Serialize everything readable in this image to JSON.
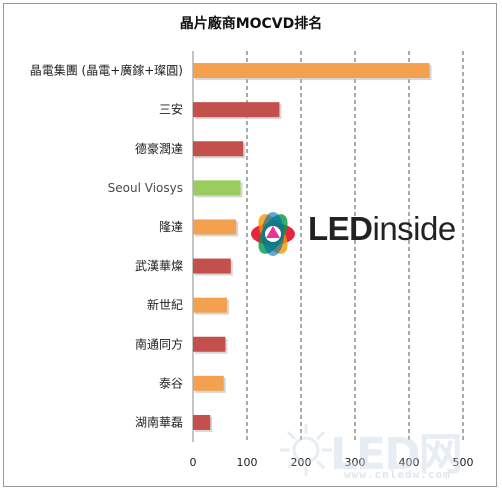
{
  "chart_data": {
    "type": "bar",
    "orientation": "horizontal",
    "title": "晶片廠商MOCVD排名",
    "xlabel": "",
    "ylabel": "",
    "xlim": [
      0,
      500
    ],
    "x_ticks": [
      0,
      100,
      200,
      300,
      400,
      500
    ],
    "grid": "vertical dashed",
    "legend": "none",
    "categories": [
      "晶電集團 (晶電+廣鎵+璨圓)",
      "三安",
      "德豪潤達",
      "Seoul Viosys",
      "隆達",
      "武漢華燦",
      "新世紀",
      "南通同方",
      "泰谷",
      "湖南華磊"
    ],
    "values": [
      438,
      160,
      93,
      88,
      80,
      70,
      63,
      60,
      57,
      32
    ],
    "colors": [
      "#f4a14f",
      "#c3504c",
      "#c3504c",
      "#9acd5e",
      "#f4a14f",
      "#c3504c",
      "#f4a14f",
      "#c3504c",
      "#f4a14f",
      "#c3504c"
    ]
  },
  "logo": {
    "text_led": "LED",
    "text_rest": "inside"
  },
  "watermark": {
    "text": "LED网",
    "sub": "www.cnledw.com"
  }
}
